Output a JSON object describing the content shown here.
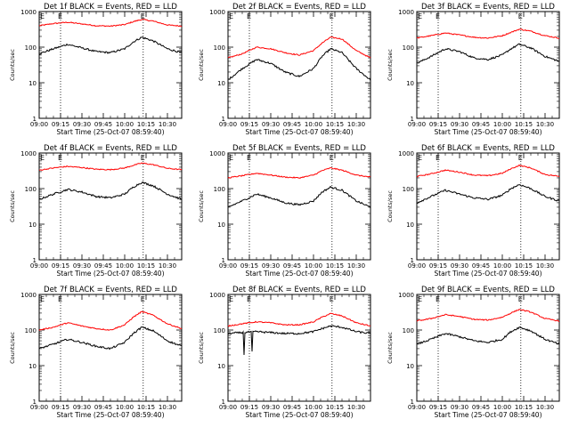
{
  "figure": {
    "common_xlabel": "Start Time (25-Oct-07 08:59:40)",
    "common_ylabel": "Counts/sec",
    "x_tick_labels": [
      "09:00",
      "09:15",
      "09:30",
      "09:45",
      "10:00",
      "10:15",
      "10:30"
    ],
    "y_tick_labels": [
      "1",
      "10",
      "100",
      "1000"
    ],
    "event_marker_label": "E",
    "colors": {
      "events": "#000000",
      "lld": "#ff0000",
      "axes": "#000000",
      "background": "#ffffff"
    }
  },
  "chart_data": [
    {
      "type": "line",
      "title": "Det 1f BLACK = Events, RED = LLD",
      "xlabel": "Start Time (25-Oct-07 08:59:40)",
      "ylabel": "Counts/sec",
      "x_range": [
        "09:00",
        "10:40"
      ],
      "ylim": [
        1,
        1000
      ],
      "y_scale": "log",
      "markers": [
        "09:00",
        "09:15",
        "10:13"
      ],
      "x": [
        "09:00",
        "09:10",
        "09:20",
        "09:30",
        "09:40",
        "09:50",
        "10:00",
        "10:06",
        "10:12",
        "10:20",
        "10:30",
        "10:40"
      ],
      "series": [
        {
          "name": "LLD",
          "values": [
            400,
            460,
            500,
            450,
            400,
            390,
            430,
            520,
            600,
            540,
            420,
            390
          ]
        },
        {
          "name": "Events",
          "values": [
            65,
            90,
            120,
            95,
            75,
            70,
            90,
            140,
            190,
            150,
            90,
            70
          ]
        }
      ]
    },
    {
      "type": "line",
      "title": "Det 2f BLACK = Events, RED = LLD",
      "xlabel": "Start Time (25-Oct-07 08:59:40)",
      "ylabel": "Counts/sec",
      "x_range": [
        "09:00",
        "10:40"
      ],
      "ylim": [
        1,
        1000
      ],
      "y_scale": "log",
      "markers": [
        "09:00",
        "09:15",
        "10:13"
      ],
      "x": [
        "09:00",
        "09:10",
        "09:20",
        "09:30",
        "09:40",
        "09:50",
        "10:00",
        "10:06",
        "10:12",
        "10:20",
        "10:30",
        "10:40"
      ],
      "series": [
        {
          "name": "LLD",
          "values": [
            50,
            65,
            100,
            90,
            70,
            60,
            80,
            130,
            190,
            170,
            80,
            50
          ]
        },
        {
          "name": "Events",
          "values": [
            12,
            25,
            45,
            35,
            20,
            15,
            25,
            55,
            90,
            70,
            25,
            12
          ]
        }
      ]
    },
    {
      "type": "line",
      "title": "Det 3f BLACK = Events, RED = LLD",
      "xlabel": "Start Time (25-Oct-07 08:59:40)",
      "ylabel": "Counts/sec",
      "x_range": [
        "09:00",
        "10:40"
      ],
      "ylim": [
        1,
        1000
      ],
      "y_scale": "log",
      "markers": [
        "09:00",
        "09:15",
        "10:13"
      ],
      "x": [
        "09:00",
        "09:10",
        "09:20",
        "09:30",
        "09:40",
        "09:50",
        "10:00",
        "10:06",
        "10:12",
        "10:20",
        "10:30",
        "10:40"
      ],
      "series": [
        {
          "name": "LLD",
          "values": [
            180,
            210,
            250,
            220,
            190,
            180,
            210,
            260,
            320,
            280,
            210,
            180
          ]
        },
        {
          "name": "Events",
          "values": [
            35,
            55,
            90,
            75,
            50,
            45,
            60,
            90,
            120,
            95,
            55,
            40
          ]
        }
      ]
    },
    {
      "type": "line",
      "title": "Det 4f BLACK = Events, RED = LLD",
      "xlabel": "Start Time (25-Oct-07 08:59:40)",
      "ylabel": "Counts/sec",
      "x_range": [
        "09:00",
        "10:40"
      ],
      "ylim": [
        1,
        1000
      ],
      "y_scale": "log",
      "markers": [
        "09:00",
        "09:15",
        "10:13"
      ],
      "x": [
        "09:00",
        "09:10",
        "09:20",
        "09:30",
        "09:40",
        "09:50",
        "10:00",
        "10:06",
        "10:12",
        "10:20",
        "10:30",
        "10:40"
      ],
      "series": [
        {
          "name": "LLD",
          "values": [
            330,
            380,
            420,
            390,
            350,
            340,
            380,
            450,
            520,
            470,
            370,
            340
          ]
        },
        {
          "name": "Events",
          "values": [
            50,
            70,
            95,
            80,
            60,
            55,
            70,
            110,
            150,
            120,
            70,
            50
          ]
        }
      ]
    },
    {
      "type": "line",
      "title": "Det 5f BLACK = Events, RED = LLD",
      "xlabel": "Start Time (25-Oct-07 08:59:40)",
      "ylabel": "Counts/sec",
      "x_range": [
        "09:00",
        "10:40"
      ],
      "ylim": [
        1,
        1000
      ],
      "y_scale": "log",
      "markers": [
        "09:00",
        "09:15",
        "10:13"
      ],
      "x": [
        "09:00",
        "09:10",
        "09:20",
        "09:30",
        "09:40",
        "09:50",
        "10:00",
        "10:06",
        "10:12",
        "10:20",
        "10:30",
        "10:40"
      ],
      "series": [
        {
          "name": "LLD",
          "values": [
            200,
            230,
            270,
            240,
            210,
            200,
            240,
            320,
            380,
            330,
            240,
            210
          ]
        },
        {
          "name": "Events",
          "values": [
            30,
            45,
            70,
            55,
            40,
            35,
            45,
            80,
            110,
            90,
            45,
            30
          ]
        }
      ]
    },
    {
      "type": "line",
      "title": "Det 6f BLACK = Events, RED = LLD",
      "xlabel": "Start Time (25-Oct-07 08:59:40)",
      "ylabel": "Counts/sec",
      "x_range": [
        "09:00",
        "10:40"
      ],
      "ylim": [
        1,
        1000
      ],
      "y_scale": "log",
      "markers": [
        "09:00",
        "09:15",
        "10:13"
      ],
      "x": [
        "09:00",
        "09:10",
        "09:20",
        "09:30",
        "09:40",
        "09:50",
        "10:00",
        "10:06",
        "10:12",
        "10:20",
        "10:30",
        "10:40"
      ],
      "series": [
        {
          "name": "LLD",
          "values": [
            220,
            260,
            330,
            290,
            240,
            230,
            270,
            360,
            450,
            380,
            250,
            220
          ]
        },
        {
          "name": "Events",
          "values": [
            40,
            60,
            90,
            70,
            55,
            50,
            65,
            100,
            130,
            100,
            60,
            45
          ]
        }
      ]
    },
    {
      "type": "line",
      "title": "Det 7f BLACK = Events, RED = LLD",
      "xlabel": "Start Time (25-Oct-07 08:59:40)",
      "ylabel": "Counts/sec",
      "x_range": [
        "09:00",
        "10:40"
      ],
      "ylim": [
        1,
        1000
      ],
      "y_scale": "log",
      "markers": [
        "09:00",
        "09:15",
        "10:13"
      ],
      "x": [
        "09:00",
        "09:10",
        "09:20",
        "09:30",
        "09:40",
        "09:50",
        "10:00",
        "10:06",
        "10:12",
        "10:20",
        "10:30",
        "10:40"
      ],
      "series": [
        {
          "name": "LLD",
          "values": [
            100,
            120,
            160,
            130,
            110,
            100,
            140,
            230,
            330,
            260,
            150,
            110
          ]
        },
        {
          "name": "Events",
          "values": [
            30,
            40,
            55,
            45,
            35,
            30,
            45,
            80,
            120,
            95,
            50,
            35
          ]
        }
      ]
    },
    {
      "type": "line",
      "title": "Det 8f BLACK = Events, RED = LLD",
      "xlabel": "Start Time (25-Oct-07 08:59:40)",
      "ylabel": "Counts/sec",
      "x_range": [
        "09:00",
        "10:40"
      ],
      "ylim": [
        1,
        1000
      ],
      "y_scale": "log",
      "markers": [
        "09:00",
        "09:15",
        "10:13"
      ],
      "x": [
        "09:00",
        "09:10",
        "09:20",
        "09:30",
        "09:40",
        "09:50",
        "10:00",
        "10:06",
        "10:12",
        "10:20",
        "10:30",
        "10:40"
      ],
      "series": [
        {
          "name": "LLD",
          "values": [
            130,
            150,
            170,
            160,
            140,
            140,
            170,
            230,
            290,
            250,
            160,
            130
          ]
        },
        {
          "name": "Events",
          "values": [
            80,
            85,
            90,
            85,
            80,
            80,
            90,
            110,
            130,
            120,
            90,
            80
          ]
        }
      ],
      "dips": [
        {
          "series": "Events",
          "x": "09:11",
          "value": 20
        },
        {
          "series": "Events",
          "x": "09:17",
          "value": 25
        }
      ]
    },
    {
      "type": "line",
      "title": "Det 9f BLACK = Events, RED = LLD",
      "xlabel": "Start Time (25-Oct-07 08:59:40)",
      "ylabel": "Counts/sec",
      "x_range": [
        "09:00",
        "10:40"
      ],
      "ylim": [
        1,
        1000
      ],
      "y_scale": "log",
      "markers": [
        "09:00",
        "09:15",
        "10:13"
      ],
      "x": [
        "09:00",
        "09:10",
        "09:20",
        "09:30",
        "09:40",
        "09:50",
        "10:00",
        "10:06",
        "10:12",
        "10:20",
        "10:30",
        "10:40"
      ],
      "series": [
        {
          "name": "LLD",
          "values": [
            180,
            210,
            270,
            240,
            200,
            190,
            230,
            300,
            380,
            320,
            210,
            180
          ]
        },
        {
          "name": "Events",
          "values": [
            40,
            55,
            80,
            65,
            50,
            45,
            55,
            90,
            120,
            95,
            55,
            40
          ]
        }
      ]
    }
  ]
}
